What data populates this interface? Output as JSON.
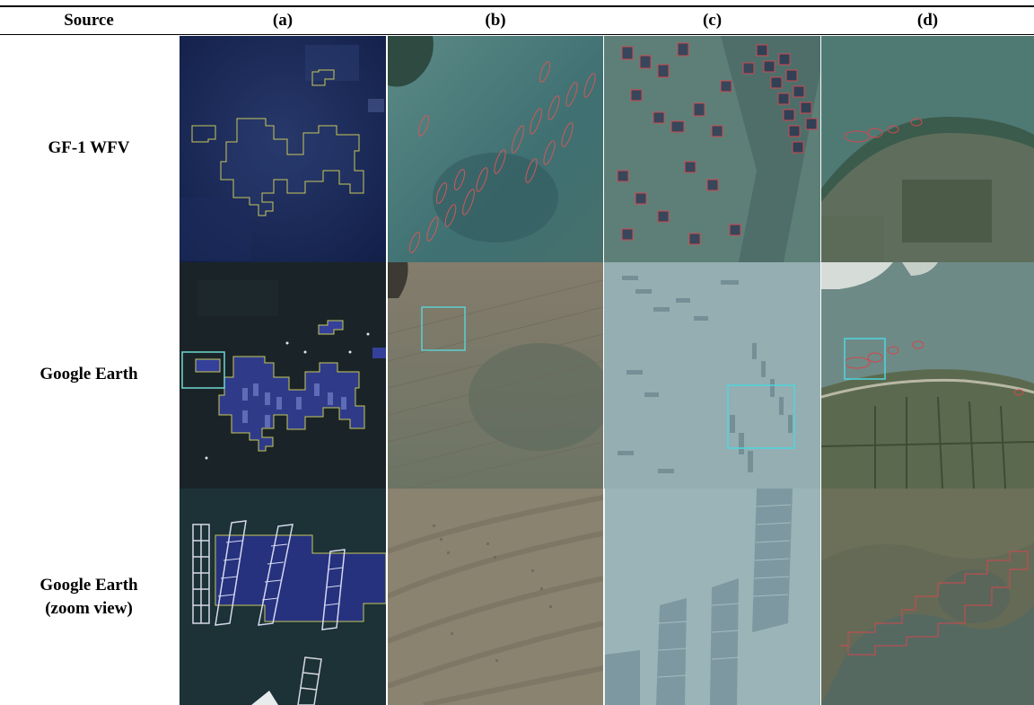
{
  "table": {
    "columns": [
      "Source",
      "(a)",
      "(b)",
      "(c)",
      "(d)"
    ],
    "rows": [
      {
        "label_lines": [
          "GF-1 WFV"
        ]
      },
      {
        "label_lines": [
          "Google Earth"
        ]
      },
      {
        "label_lines": [
          "Google Earth",
          "(zoom view)"
        ]
      }
    ]
  },
  "colors": {
    "outline_yellow": "#c8c85a",
    "outline_red": "#e0404a",
    "highlight_cyan": "#3fd8d8"
  }
}
